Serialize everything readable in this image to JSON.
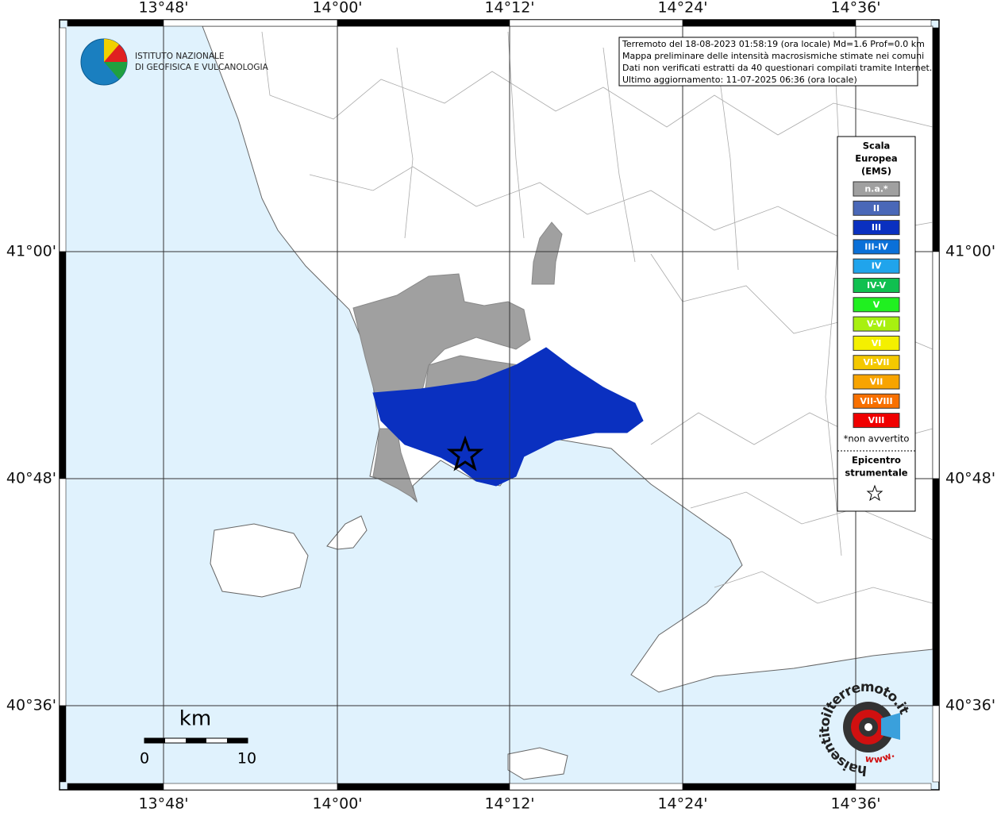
{
  "header": {
    "logo_lines": [
      "ISTITUTO NAZIONALE",
      "DI GEOFISICA E VULCANOLOGIA"
    ]
  },
  "info": {
    "lines": [
      "Terremoto del 18-08-2023 01:58:19 (ora locale) Md=1.6 Prof=0.0 km",
      "Mappa preliminare delle intensità macrosismiche stimate nei comuni",
      "Dati non verificati estratti da 40 questionari compilati tramite Internet.",
      "Ultimo aggiornamento: 11-07-2025 06:36 (ora locale)"
    ]
  },
  "axes": {
    "lon_labels": [
      "13°48'",
      "14°00'",
      "14°12'",
      "14°24'",
      "14°36'"
    ],
    "lat_labels": [
      "41°00'",
      "40°48'",
      "40°36'"
    ]
  },
  "legend": {
    "title_lines": [
      "Scala",
      "Europea",
      "(EMS)"
    ],
    "entries": [
      {
        "label": "n.a.*",
        "color": "#a0a0a0"
      },
      {
        "label": "II",
        "color": "#4a68b8"
      },
      {
        "label": "III",
        "color": "#0a30c0"
      },
      {
        "label": "III-IV",
        "color": "#0a70d8"
      },
      {
        "label": "IV",
        "color": "#20a4ec"
      },
      {
        "label": "IV-V",
        "color": "#10c050"
      },
      {
        "label": "V",
        "color": "#20f020"
      },
      {
        "label": "V-VI",
        "color": "#a8f010"
      },
      {
        "label": "VI",
        "color": "#f4f000"
      },
      {
        "label": "VI-VII",
        "color": "#f4c800"
      },
      {
        "label": "VII",
        "color": "#f8a400"
      },
      {
        "label": "VII-VIII",
        "color": "#f87000"
      },
      {
        "label": "VIII",
        "color": "#f00000"
      }
    ],
    "footnote": "*non avvertito",
    "epicenter_lines": [
      "Epicentro",
      "strumentale"
    ]
  },
  "scale_bar": {
    "unit": "km",
    "labels": [
      "0",
      "10"
    ]
  },
  "watermark": {
    "text": "haisentitoilterremoto.it",
    "prefix": "www."
  }
}
